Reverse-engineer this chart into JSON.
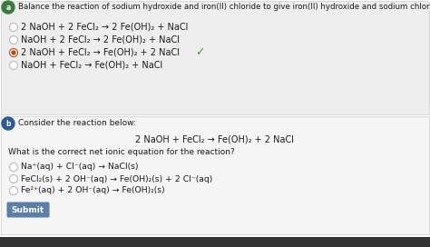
{
  "bg_color": "#ffffff",
  "section_a_bg": "#eeeeee",
  "section_b_bg": "#f5f5f5",
  "label_bg": "#4a8a4a",
  "question_a": "Balance the reaction of sodium hydroxide and iron(II) chloride to give iron(II) hydroxide and sodium chloride.",
  "options_a": [
    "2 NaOH + 2 FeCl₂ → 2 Fe(OH)₂ + NaCl",
    "NaOH + 2 FeCl₂ → 2 Fe(OH)₂ + NaCl",
    "2 NaOH + FeCl₂ → Fe(OH)₂ + 2 NaCl",
    "NaOH + FeCl₂ → Fe(OH)₂ + NaCl"
  ],
  "correct_option_a": 2,
  "section_b_intro": "Consider the reaction below:",
  "reaction_b": "2 NaOH + FeCl₂ → Fe(OH)₂ + 2 NaCl",
  "question_b": "What is the correct net ionic equation for the reaction?",
  "options_b": [
    "Na⁺(aq) + Cl⁻(aq) → NaCl(s)",
    "FeCl₂(s) + 2 OH⁻(aq) → Fe(OH)₂(s) + 2 Cl⁻(aq)",
    "Fe²⁺(aq) + 2 OH⁻(aq) → Fe(OH)₂(s)"
  ],
  "submit_label": "Submit",
  "submit_bg": "#5b7fa6",
  "submit_text_color": "#ffffff",
  "check_color": "#4a9a4a",
  "radio_color": "#bbbbbb",
  "selected_dot_color": "#b05010",
  "text_color": "#1a1a1a",
  "border_color": "#cccccc",
  "bottom_bar_color": "#333333",
  "label_a_bg": "#3a7a3a",
  "label_b_bg": "#2a5a9a"
}
